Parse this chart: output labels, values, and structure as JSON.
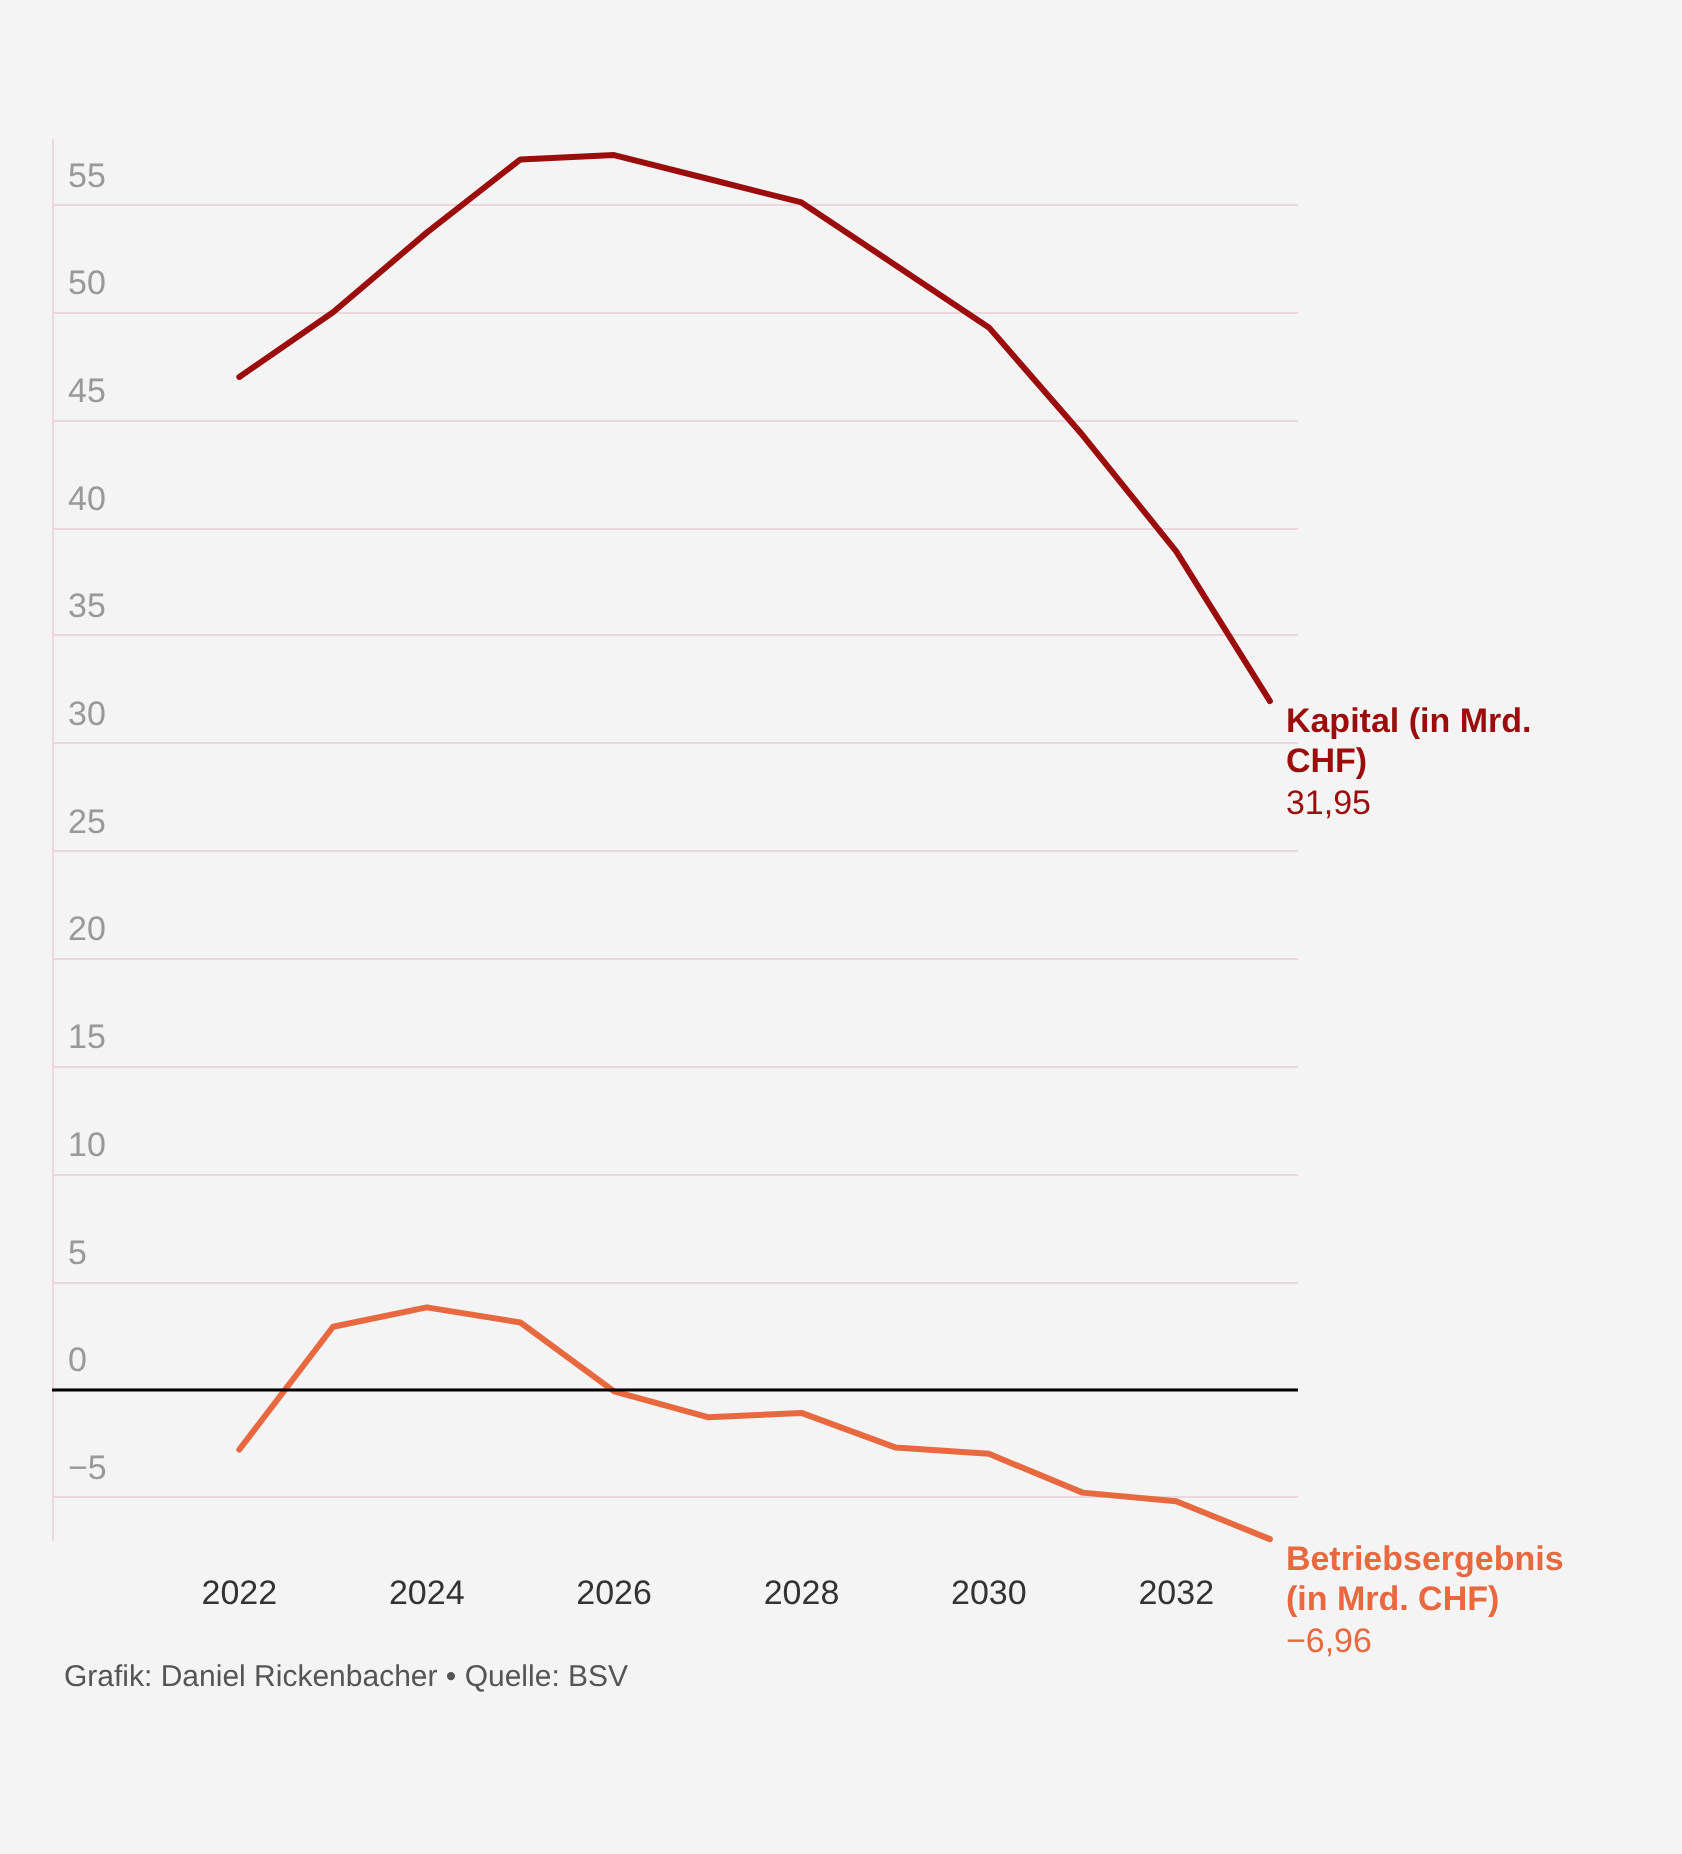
{
  "chart_data": {
    "type": "line",
    "x": [
      2022,
      2023,
      2024,
      2025,
      2026,
      2027,
      2028,
      2029,
      2030,
      2031,
      2032,
      2033
    ],
    "series": [
      {
        "name": "Kapital (in Mrd. CHF)",
        "color": "#9b0d0d",
        "values": [
          47.0,
          50.0,
          53.7,
          57.1,
          57.3,
          56.2,
          55.1,
          52.2,
          49.3,
          44.3,
          38.9,
          31.95
        ],
        "value_labels": [
          null,
          null,
          null,
          null,
          null,
          null,
          null,
          null,
          null,
          null,
          null,
          "31,95"
        ]
      },
      {
        "name": "Betriebsergebnis (in Mrd. CHF)",
        "color": "#e8693f",
        "values": [
          -2.8,
          2.9,
          3.8,
          3.1,
          -0.1,
          -1.3,
          -1.1,
          -2.7,
          -3.0,
          -4.8,
          -5.2,
          -6.96
        ],
        "value_labels": [
          null,
          null,
          null,
          null,
          null,
          null,
          null,
          null,
          null,
          null,
          null,
          "−6,96"
        ]
      }
    ],
    "xlim": [
      2020,
      2033.3
    ],
    "xticks": [
      2022,
      2024,
      2026,
      2028,
      2030,
      2032
    ],
    "ylim": [
      -7,
      58
    ],
    "yticks": [
      {
        "value": -5,
        "label": "−5"
      },
      0,
      5,
      10,
      15,
      20,
      25,
      30,
      35,
      40,
      45,
      50,
      55
    ],
    "grid": "y",
    "legend": false,
    "marker": "none",
    "line_style": "solid",
    "ref_lines": [
      {
        "axis": "y",
        "value": 0,
        "color": "#000000"
      }
    ],
    "annotations": [
      "Grafik: Daniel Rickenbacher • Quelle: BSV"
    ]
  }
}
